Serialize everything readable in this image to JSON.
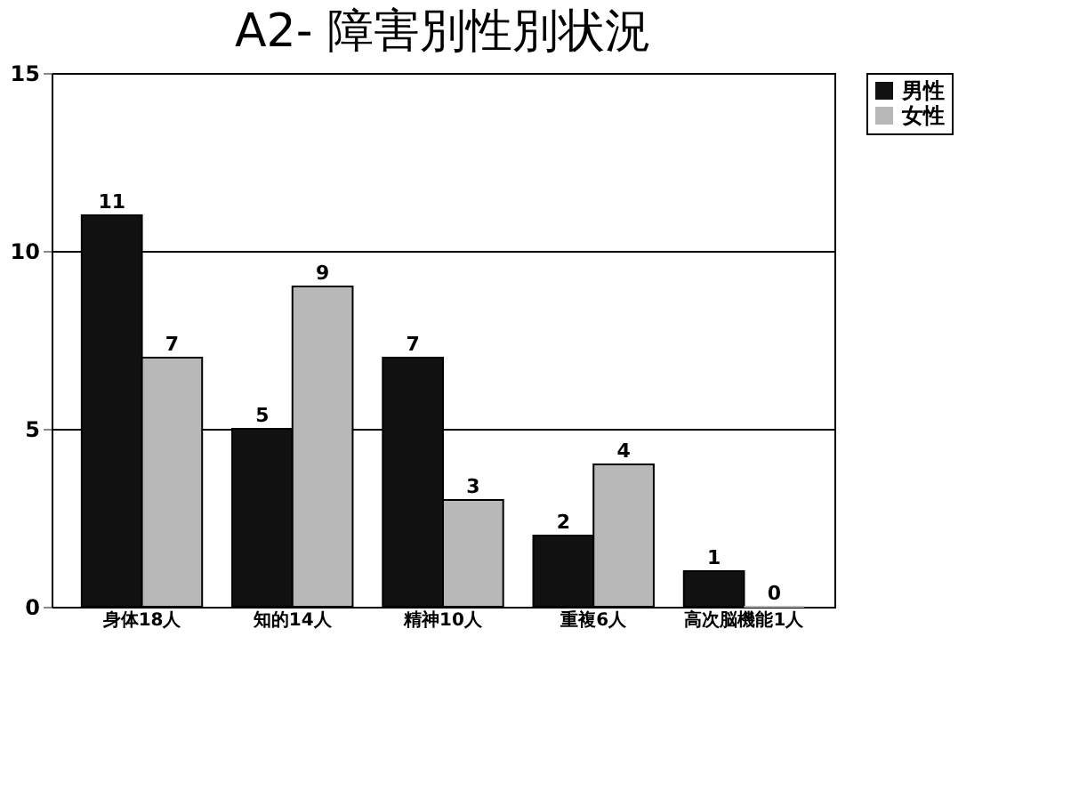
{
  "chart_data": {
    "type": "bar",
    "title": "A2- 障害別性別状況",
    "categories": [
      "身体18人",
      "知的14人",
      "精神10人",
      "重複6人",
      "高次脳機能1人"
    ],
    "series": [
      {
        "name": "男性",
        "color": "#111111",
        "values": [
          11,
          5,
          7,
          2,
          1
        ]
      },
      {
        "name": "女性",
        "color": "#b8b8b8",
        "values": [
          7,
          9,
          3,
          4,
          0
        ]
      }
    ],
    "ylim": [
      0,
      15
    ],
    "yticks": [
      0,
      5,
      10,
      15
    ],
    "grid": "y",
    "legend": "right",
    "data_labels": true
  }
}
